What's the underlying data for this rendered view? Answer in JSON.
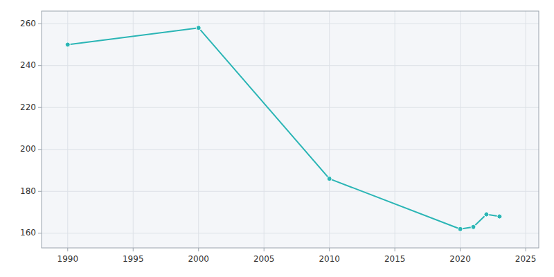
{
  "chart_data": {
    "type": "line",
    "x": [
      1990,
      2000,
      2010,
      2020,
      2021,
      2022,
      2023
    ],
    "values": [
      250,
      258,
      186,
      162,
      163,
      169,
      168
    ],
    "color": "#2ab5b5",
    "marker": "circle",
    "xlim": [
      1988,
      2026
    ],
    "ylim": [
      153,
      266
    ],
    "xticks": [
      1990,
      1995,
      2000,
      2005,
      2010,
      2015,
      2020,
      2025
    ],
    "yticks": [
      160,
      180,
      200,
      220,
      240,
      260
    ],
    "grid": true
  }
}
